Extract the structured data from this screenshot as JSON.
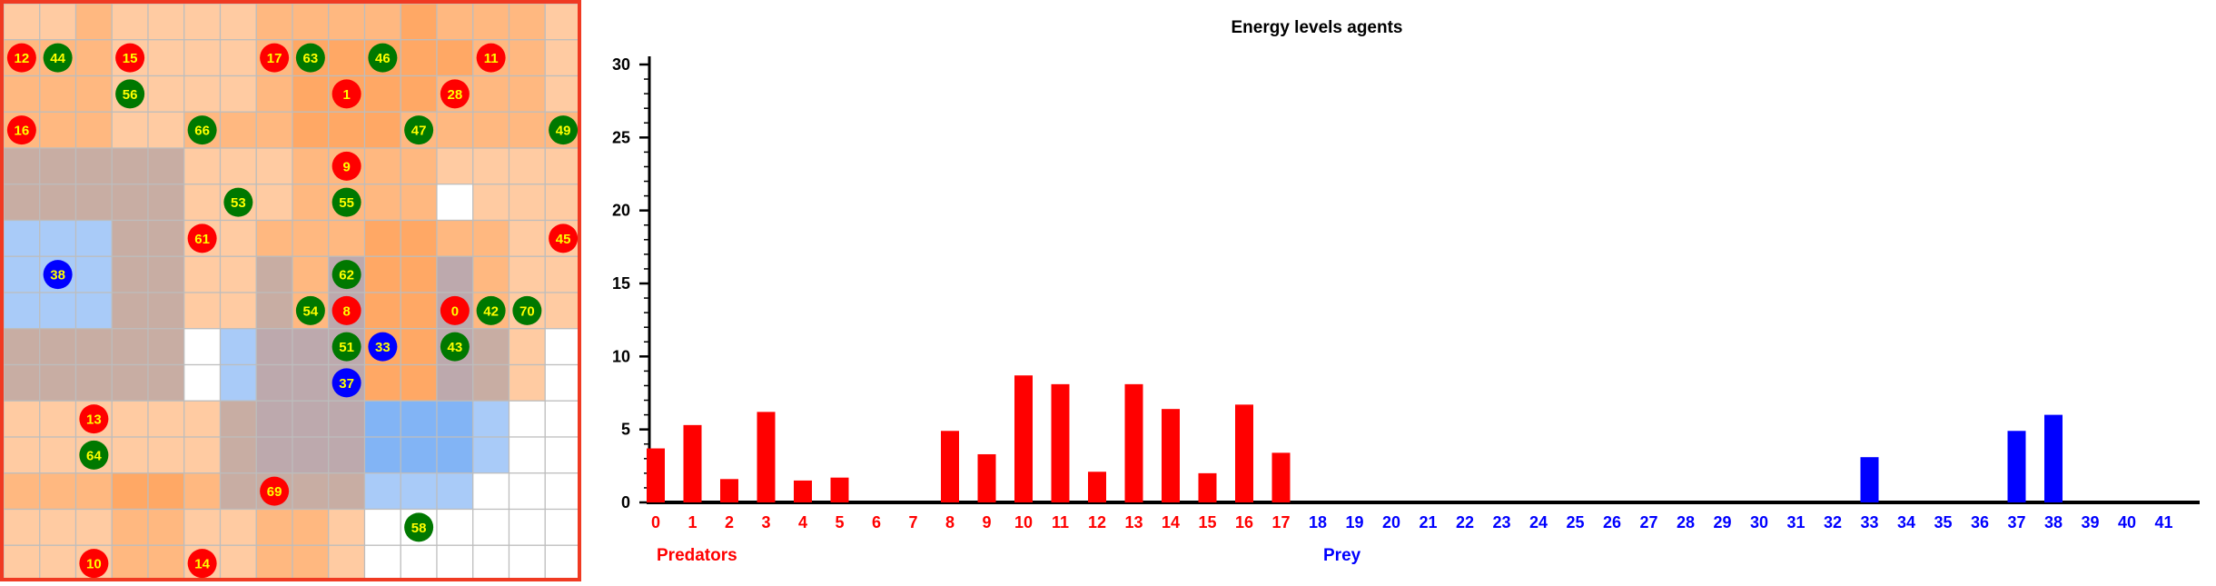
{
  "grid": {
    "rows": 16,
    "cols": 16,
    "colors": {
      "empty": "#ffffff",
      "orange_light": "#ffcba2",
      "orange_mid": "#ffb880",
      "orange_dark": "#ffa865",
      "gray_light": "#d8b8a8",
      "gray": "#c8ada3",
      "gray_dark": "#bda9ad",
      "blue_light": "#a9cbf8",
      "blue": "#82b4f5",
      "border": "#f03a22",
      "gridline": "#bdbdbd"
    },
    "cells": [
      [
        "orange_light",
        "orange_light",
        "orange_mid",
        "orange_light",
        "orange_light",
        "orange_light",
        "orange_light",
        "orange_mid",
        "orange_mid",
        "orange_mid",
        "orange_mid",
        "orange_dark",
        "orange_mid",
        "orange_mid",
        "orange_mid",
        "orange_light"
      ],
      [
        "orange_mid",
        "orange_mid",
        "orange_mid",
        "orange_light",
        "orange_light",
        "orange_light",
        "orange_light",
        "orange_mid",
        "orange_dark",
        "orange_dark",
        "orange_dark",
        "orange_dark",
        "orange_dark",
        "orange_mid",
        "orange_mid",
        "orange_light"
      ],
      [
        "orange_mid",
        "orange_mid",
        "orange_mid",
        "orange_light",
        "orange_light",
        "orange_light",
        "orange_light",
        "orange_mid",
        "orange_dark",
        "orange_dark",
        "orange_dark",
        "orange_dark",
        "orange_mid",
        "orange_mid",
        "orange_mid",
        "orange_light"
      ],
      [
        "orange_mid",
        "orange_mid",
        "orange_mid",
        "orange_light",
        "orange_light",
        "orange_mid",
        "orange_mid",
        "orange_mid",
        "orange_dark",
        "orange_dark",
        "orange_dark",
        "orange_mid",
        "orange_mid",
        "orange_mid",
        "orange_mid",
        "orange_mid"
      ],
      [
        "gray",
        "gray",
        "gray",
        "gray",
        "gray",
        "orange_light",
        "orange_light",
        "orange_light",
        "orange_mid",
        "orange_mid",
        "orange_mid",
        "orange_mid",
        "orange_light",
        "orange_light",
        "orange_light",
        "orange_light"
      ],
      [
        "gray",
        "gray",
        "gray",
        "gray",
        "gray",
        "orange_light",
        "orange_light",
        "orange_light",
        "orange_mid",
        "orange_mid",
        "orange_mid",
        "orange_mid",
        "empty",
        "orange_light",
        "orange_light",
        "orange_light"
      ],
      [
        "blue_light",
        "blue_light",
        "blue_light",
        "gray",
        "gray",
        "orange_light",
        "orange_light",
        "orange_mid",
        "orange_mid",
        "orange_mid",
        "orange_dark",
        "orange_dark",
        "orange_mid",
        "orange_mid",
        "orange_light",
        "orange_light"
      ],
      [
        "blue_light",
        "blue_light",
        "blue_light",
        "gray",
        "gray",
        "orange_light",
        "orange_light",
        "gray",
        "orange_mid",
        "gray_dark",
        "orange_dark",
        "orange_dark",
        "gray_dark",
        "orange_mid",
        "orange_light",
        "orange_light"
      ],
      [
        "blue_light",
        "blue_light",
        "blue_light",
        "gray",
        "gray",
        "orange_light",
        "orange_light",
        "gray",
        "orange_mid",
        "gray_dark",
        "orange_dark",
        "orange_dark",
        "gray_dark",
        "orange_mid",
        "orange_light",
        "orange_light"
      ],
      [
        "gray",
        "gray",
        "gray",
        "gray",
        "gray",
        "empty",
        "blue_light",
        "gray_dark",
        "gray_dark",
        "gray_dark",
        "orange_dark",
        "orange_dark",
        "gray_dark",
        "gray",
        "orange_light",
        "empty"
      ],
      [
        "gray",
        "gray",
        "gray",
        "gray",
        "gray",
        "empty",
        "blue_light",
        "gray_dark",
        "gray_dark",
        "gray_dark",
        "orange_dark",
        "orange_dark",
        "gray_dark",
        "gray",
        "orange_light",
        "empty"
      ],
      [
        "orange_light",
        "orange_light",
        "orange_light",
        "orange_light",
        "orange_light",
        "orange_light",
        "gray",
        "gray_dark",
        "gray_dark",
        "gray_dark",
        "blue",
        "blue",
        "blue",
        "blue_light",
        "empty",
        "empty"
      ],
      [
        "orange_light",
        "orange_light",
        "orange_light",
        "orange_light",
        "orange_light",
        "orange_light",
        "gray",
        "gray_dark",
        "gray_dark",
        "gray_dark",
        "blue",
        "blue",
        "blue",
        "blue_light",
        "empty",
        "empty"
      ],
      [
        "orange_mid",
        "orange_mid",
        "orange_mid",
        "orange_dark",
        "orange_dark",
        "orange_mid",
        "gray",
        "gray",
        "gray",
        "gray",
        "blue_light",
        "blue_light",
        "blue_light",
        "empty",
        "empty",
        "empty"
      ],
      [
        "orange_light",
        "orange_light",
        "orange_light",
        "orange_mid",
        "orange_mid",
        "orange_light",
        "orange_light",
        "orange_mid",
        "orange_mid",
        "orange_light",
        "empty",
        "empty",
        "empty",
        "empty",
        "empty",
        "empty"
      ],
      [
        "orange_light",
        "orange_light",
        "orange_light",
        "orange_mid",
        "orange_mid",
        "orange_light",
        "orange_light",
        "orange_mid",
        "orange_mid",
        "orange_light",
        "empty",
        "empty",
        "empty",
        "empty",
        "empty",
        "empty"
      ]
    ],
    "agents": [
      {
        "label": "12",
        "kind": "predator",
        "col": 0,
        "row": 1
      },
      {
        "label": "44",
        "kind": "prey",
        "col": 1,
        "row": 1
      },
      {
        "label": "15",
        "kind": "predator",
        "col": 3,
        "row": 1
      },
      {
        "label": "17",
        "kind": "predator",
        "col": 7,
        "row": 1
      },
      {
        "label": "63",
        "kind": "prey",
        "col": 8,
        "row": 1
      },
      {
        "label": "46",
        "kind": "prey",
        "col": 10,
        "row": 1
      },
      {
        "label": "11",
        "kind": "predator",
        "col": 13,
        "row": 1
      },
      {
        "label": "56",
        "kind": "prey",
        "col": 3,
        "row": 2
      },
      {
        "label": "1",
        "kind": "predator",
        "col": 9,
        "row": 2
      },
      {
        "label": "28",
        "kind": "predator",
        "col": 12,
        "row": 2
      },
      {
        "label": "16",
        "kind": "predator",
        "col": 0,
        "row": 3
      },
      {
        "label": "66",
        "kind": "prey",
        "col": 5,
        "row": 3
      },
      {
        "label": "47",
        "kind": "prey",
        "col": 11,
        "row": 3
      },
      {
        "label": "49",
        "kind": "prey",
        "col": 15,
        "row": 3
      },
      {
        "label": "9",
        "kind": "predator",
        "col": 9,
        "row": 4
      },
      {
        "label": "53",
        "kind": "prey",
        "col": 6,
        "row": 5
      },
      {
        "label": "55",
        "kind": "prey",
        "col": 9,
        "row": 5
      },
      {
        "label": "61",
        "kind": "predator",
        "col": 5,
        "row": 6
      },
      {
        "label": "45",
        "kind": "predator",
        "col": 15,
        "row": 6
      },
      {
        "label": "38",
        "kind": "prey_blue",
        "col": 1,
        "row": 7
      },
      {
        "label": "62",
        "kind": "prey",
        "col": 9,
        "row": 7
      },
      {
        "label": "54",
        "kind": "prey",
        "col": 8,
        "row": 8
      },
      {
        "label": "8",
        "kind": "predator",
        "col": 9,
        "row": 8
      },
      {
        "label": "0",
        "kind": "predator",
        "col": 12,
        "row": 8
      },
      {
        "label": "42",
        "kind": "prey",
        "col": 13,
        "row": 8
      },
      {
        "label": "70",
        "kind": "prey",
        "col": 14,
        "row": 8
      },
      {
        "label": "51",
        "kind": "prey",
        "col": 9,
        "row": 9
      },
      {
        "label": "33",
        "kind": "prey_blue",
        "col": 10,
        "row": 9
      },
      {
        "label": "43",
        "kind": "prey",
        "col": 12,
        "row": 9
      },
      {
        "label": "37",
        "kind": "prey_blue",
        "col": 9,
        "row": 10
      },
      {
        "label": "13",
        "kind": "predator",
        "col": 2,
        "row": 11
      },
      {
        "label": "64",
        "kind": "prey",
        "col": 2,
        "row": 12
      },
      {
        "label": "69",
        "kind": "predator",
        "col": 7,
        "row": 13
      },
      {
        "label": "58",
        "kind": "prey",
        "col": 11,
        "row": 14
      },
      {
        "label": "10",
        "kind": "predator",
        "col": 2,
        "row": 15
      },
      {
        "label": "14",
        "kind": "predator",
        "col": 5,
        "row": 15
      }
    ],
    "agent_colors": {
      "predator": "#ff0000",
      "prey": "#007800",
      "prey_blue": "#0000ff",
      "label": "#ffff00"
    }
  },
  "chart_data": {
    "type": "bar",
    "title": "Energy levels agents",
    "xlabel": "",
    "ylabel": "",
    "ylim": [
      0,
      30
    ],
    "yticks": [
      0,
      5,
      10,
      15,
      20,
      25,
      30
    ],
    "grid": false,
    "categories": [
      "0",
      "1",
      "2",
      "3",
      "4",
      "5",
      "6",
      "7",
      "8",
      "9",
      "10",
      "11",
      "12",
      "13",
      "14",
      "15",
      "16",
      "17",
      "18",
      "19",
      "20",
      "21",
      "22",
      "23",
      "24",
      "25",
      "26",
      "27",
      "28",
      "29",
      "30",
      "31",
      "32",
      "33",
      "34",
      "35",
      "36",
      "37",
      "38",
      "39",
      "40",
      "41"
    ],
    "series": [
      {
        "name": "Predators",
        "color": "#ff0000",
        "x": [
          0,
          1,
          2,
          3,
          4,
          5,
          6,
          7,
          8,
          9,
          10,
          11,
          12,
          13,
          14,
          15,
          16,
          17
        ],
        "values": [
          3.7,
          5.3,
          1.6,
          6.2,
          1.5,
          1.7,
          0,
          0,
          4.9,
          3.3,
          8.7,
          8.1,
          2.1,
          8.1,
          6.4,
          2.0,
          6.7,
          3.4
        ]
      },
      {
        "name": "Prey",
        "color": "#0000ff",
        "x": [
          18,
          19,
          20,
          21,
          22,
          23,
          24,
          25,
          26,
          27,
          28,
          29,
          30,
          31,
          32,
          33,
          34,
          35,
          36,
          37,
          38,
          39,
          40,
          41
        ],
        "values": [
          0,
          0,
          0,
          0,
          0,
          0,
          0,
          0,
          0,
          0,
          0,
          0,
          0,
          0,
          0,
          3.1,
          0,
          0,
          0,
          4.9,
          6.0,
          0,
          0,
          0
        ]
      }
    ]
  }
}
